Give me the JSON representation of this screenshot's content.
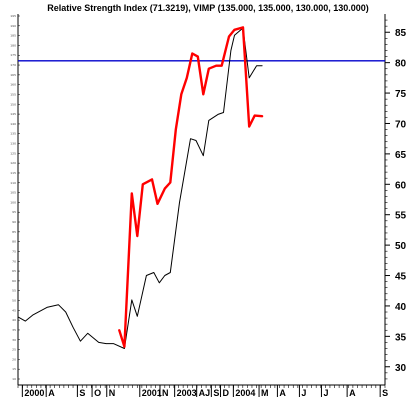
{
  "chart_data": {
    "type": "line",
    "title": "Relative Strength Index (71.3219), VIMP (135.000, 135.000, 130.000, 130.000)",
    "ylim": [
      27,
      88
    ],
    "xlim": [
      0,
      100
    ],
    "y_ticks": [
      30,
      35,
      40,
      45,
      50,
      55,
      60,
      65,
      70,
      75,
      80,
      85
    ],
    "left_axis_ticks": [
      "10",
      "15",
      "20",
      "25",
      "30",
      "35",
      "40",
      "45",
      "50",
      "55",
      "60",
      "65",
      "70",
      "75",
      "80",
      "85",
      "90",
      "95",
      "100",
      "105",
      "110",
      "115",
      "120",
      "125",
      "130",
      "135",
      "140",
      "145",
      "150",
      "155",
      "160",
      "165",
      "170",
      "175",
      "180",
      "185",
      "190",
      "195"
    ],
    "x_ticks": [
      {
        "label": "2000",
        "x": 2
      },
      {
        "label": "A",
        "x": 8.5
      },
      {
        "label": "S",
        "x": 17
      },
      {
        "label": "O",
        "x": 21
      },
      {
        "label": "N",
        "x": 25
      },
      {
        "label": "2001",
        "x": 34
      },
      {
        "label": "N",
        "x": 39.5
      },
      {
        "label": "2003",
        "x": 43.5
      },
      {
        "label": "AJ",
        "x": 49.5
      },
      {
        "label": "S",
        "x": 53.5
      },
      {
        "label": "D",
        "x": 56
      },
      {
        "label": "2004",
        "x": 59.5
      },
      {
        "label": "M",
        "x": 66.5
      },
      {
        "label": "A",
        "x": 71.5
      },
      {
        "label": "J",
        "x": 77.5
      },
      {
        "label": "J",
        "x": 83.5
      },
      {
        "label": "A",
        "x": 90.5
      },
      {
        "label": "S",
        "x": 99.5
      }
    ],
    "hline": {
      "y": 80.3,
      "color": "#0000cc"
    },
    "series": [
      {
        "color": "#000000",
        "points": [
          [
            0,
            38.2
          ],
          [
            2,
            37.5
          ],
          [
            4,
            38.5
          ],
          [
            8,
            39.8
          ],
          [
            11,
            40.2
          ],
          [
            13,
            39.0
          ],
          [
            15,
            36.5
          ],
          [
            17,
            34.2
          ],
          [
            19,
            35.5
          ],
          [
            22,
            34.0
          ],
          [
            24,
            33.8
          ],
          [
            26,
            33.8
          ],
          [
            29,
            33.0
          ],
          [
            31,
            41.0
          ],
          [
            32.5,
            38.3
          ],
          [
            35,
            45.0
          ],
          [
            37,
            45.5
          ],
          [
            38.5,
            43.8
          ],
          [
            40,
            45.0
          ],
          [
            41.5,
            45.5
          ],
          [
            44,
            57.0
          ],
          [
            47,
            67.5
          ],
          [
            48.5,
            67.2
          ],
          [
            50.5,
            64.7
          ],
          [
            52,
            70.5
          ],
          [
            54.5,
            71.5
          ],
          [
            56,
            71.8
          ],
          [
            58,
            82.0
          ],
          [
            59,
            84.5
          ],
          [
            61.3,
            85.7
          ],
          [
            63,
            77.5
          ],
          [
            65,
            79.5
          ],
          [
            66.5,
            79.5
          ]
        ]
      },
      {
        "color": "#ff0000",
        "points": [
          [
            27.6,
            36.0
          ],
          [
            29,
            33.3
          ],
          [
            31,
            58.5
          ],
          [
            32.5,
            51.5
          ],
          [
            34,
            60.0
          ],
          [
            36.5,
            60.8
          ],
          [
            38,
            56.8
          ],
          [
            40,
            59.3
          ],
          [
            41.5,
            60.3
          ],
          [
            43,
            69.0
          ],
          [
            44.5,
            74.8
          ],
          [
            46,
            77.5
          ],
          [
            47.5,
            81.5
          ],
          [
            49,
            81.0
          ],
          [
            50.5,
            74.8
          ],
          [
            52,
            79.0
          ],
          [
            54,
            79.5
          ],
          [
            55.5,
            79.5
          ],
          [
            57.5,
            84.3
          ],
          [
            59,
            85.4
          ],
          [
            61.3,
            85.8
          ],
          [
            63,
            69.5
          ],
          [
            64.5,
            71.3
          ],
          [
            66.5,
            71.2
          ]
        ]
      }
    ]
  }
}
